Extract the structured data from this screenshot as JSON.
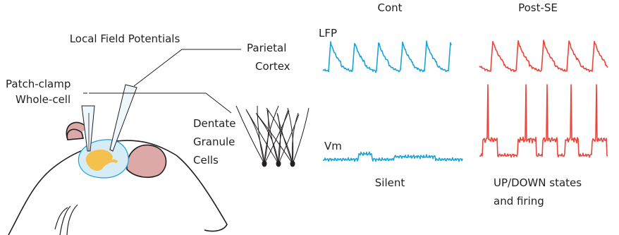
{
  "labels": {
    "local_field_potentials": "Local Field Potentials",
    "parietal_cortex": [
      "Parietal",
      "Cortex"
    ],
    "patch_clamp": [
      "Patch-clamp",
      "Whole-cell"
    ],
    "dentate_granule_cells": [
      "Dentate",
      "Granule",
      "Cells"
    ]
  },
  "recordings": {
    "columns": [
      "Cont",
      "Post-SE"
    ],
    "rows": [
      "LFP",
      "Vm"
    ],
    "states": [
      [
        "Silent"
      ],
      [
        "UP/DOWN states",
        "and firing"
      ]
    ]
  }
}
